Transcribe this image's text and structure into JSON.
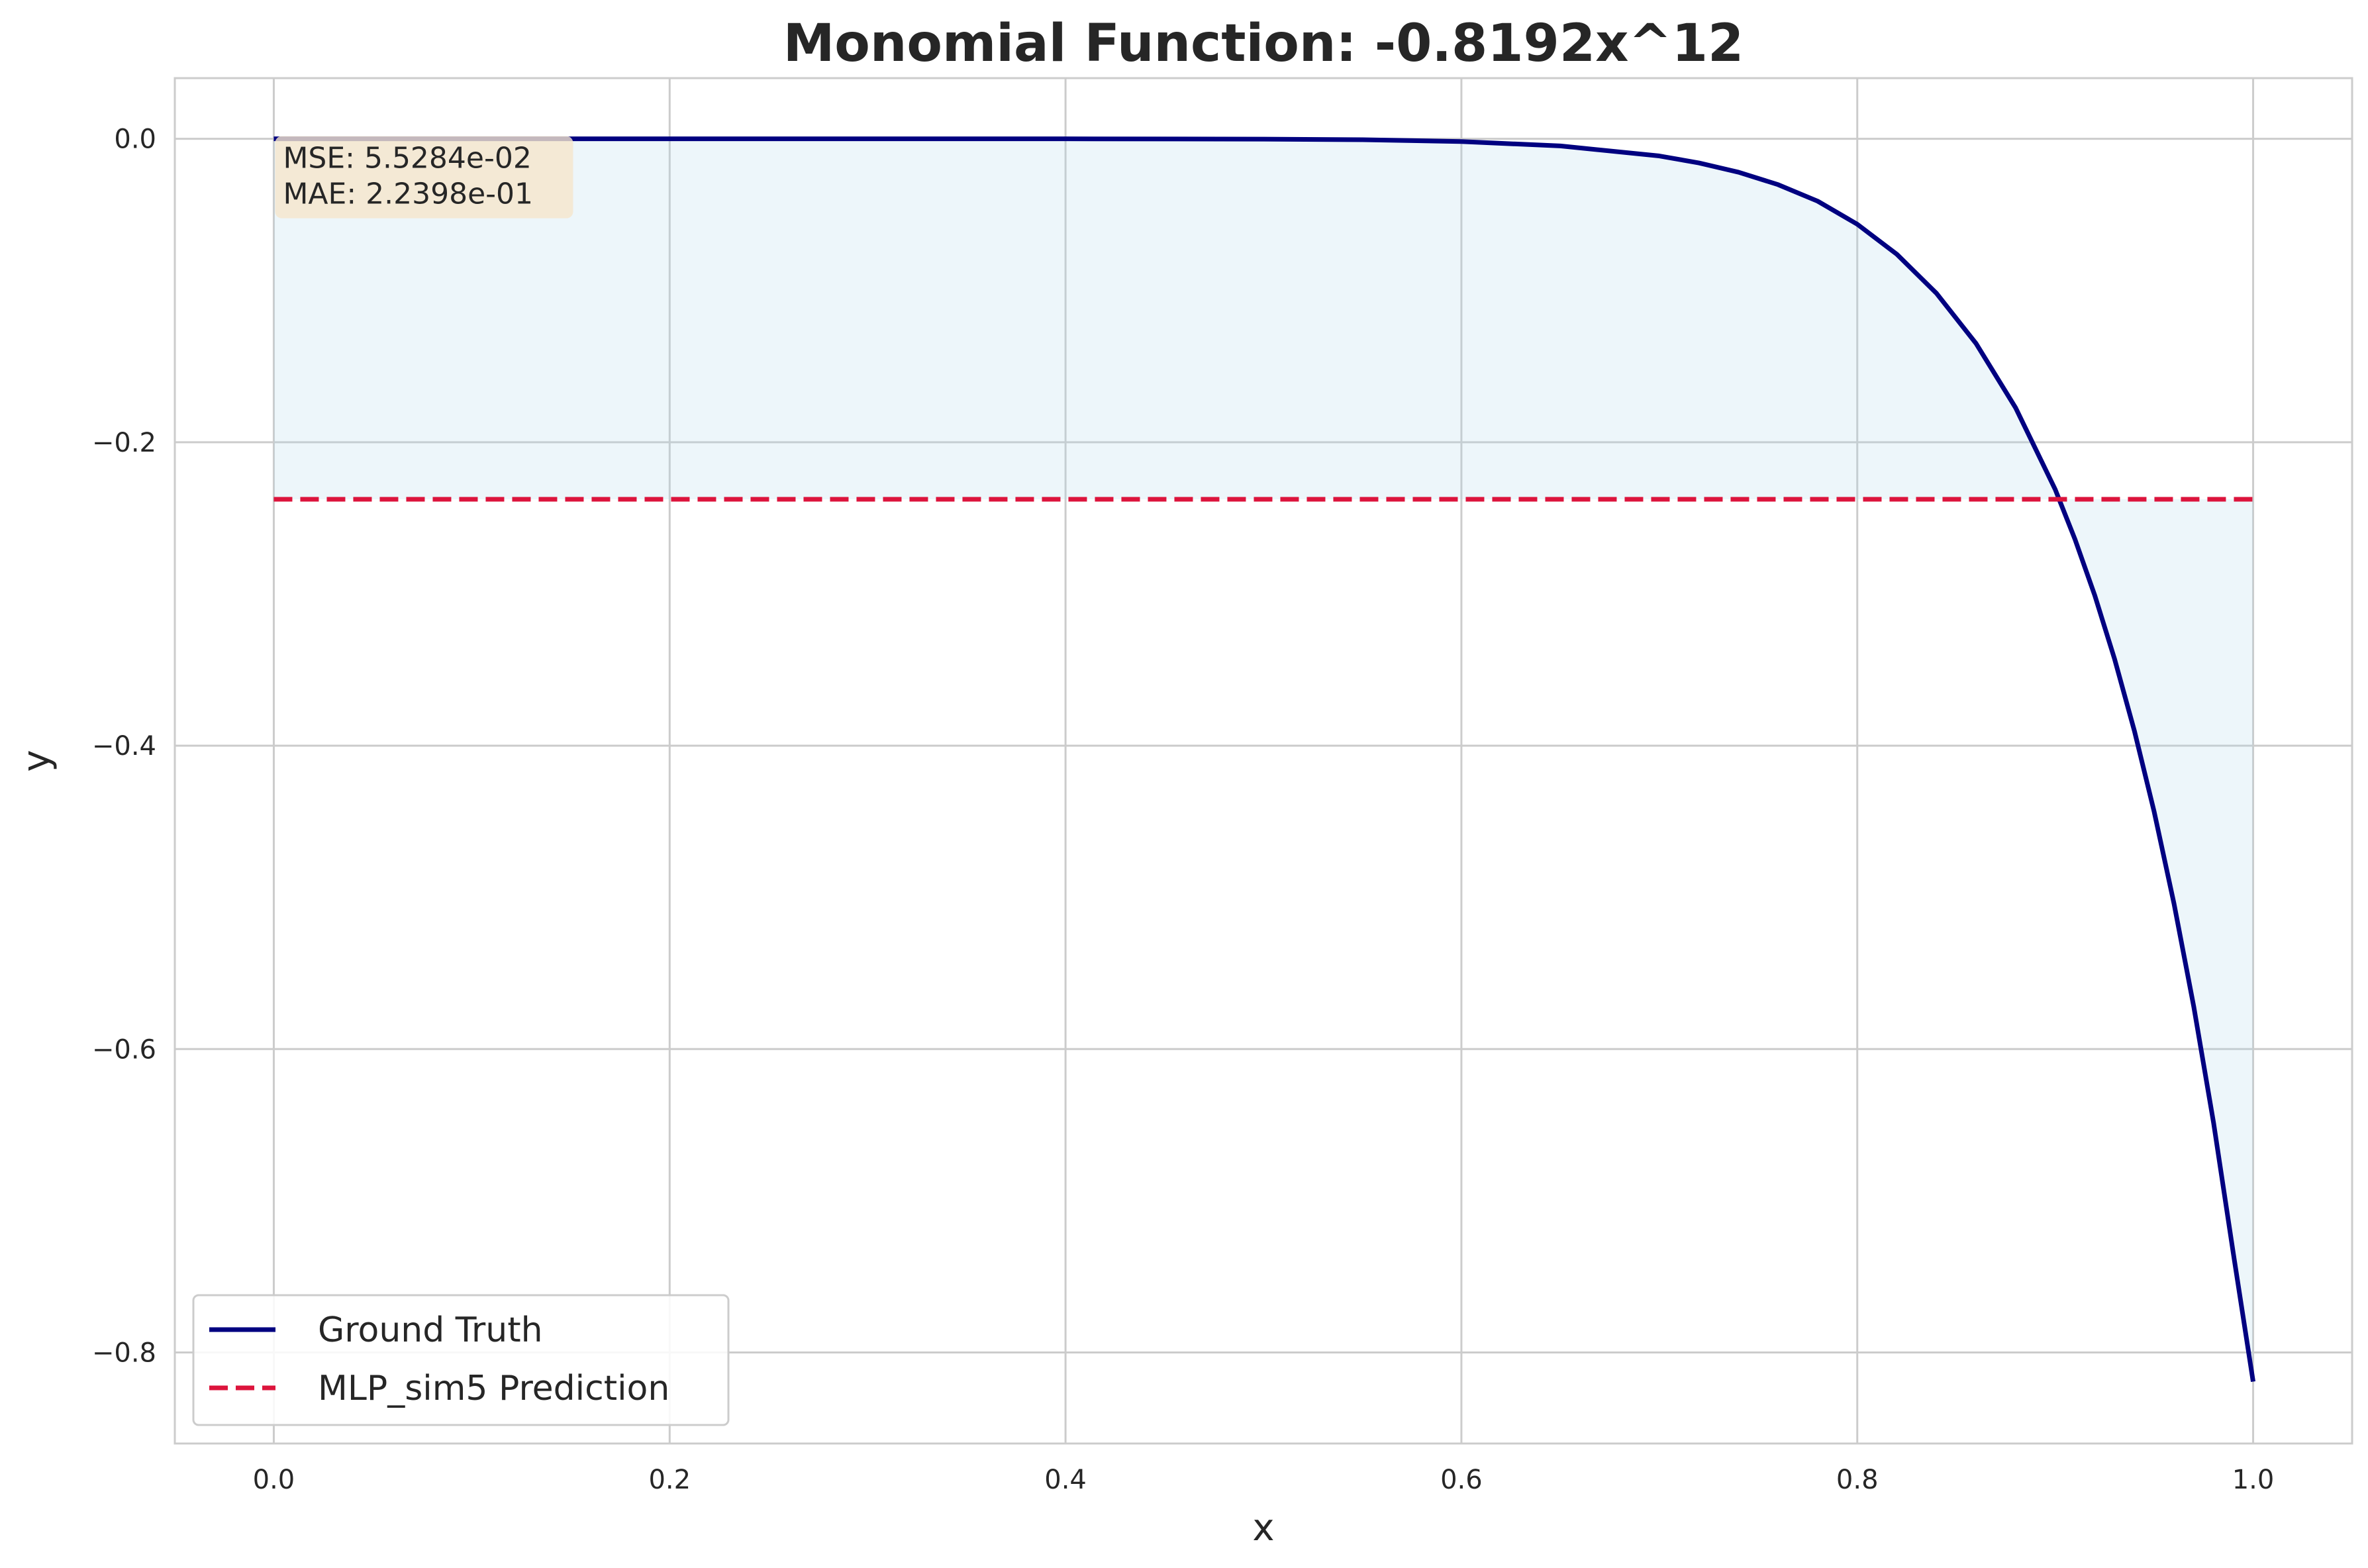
{
  "chart_data": {
    "type": "line",
    "title": "Monomial Function: -0.8192x^12",
    "xlabel": "x",
    "ylabel": "y",
    "xlim": [
      -0.05,
      1.05
    ],
    "ylim": [
      -0.86,
      0.04
    ],
    "x_ticks": [
      0.0,
      0.2,
      0.4,
      0.6,
      0.8,
      1.0
    ],
    "x_tick_labels": [
      "0.0",
      "0.2",
      "0.4",
      "0.6",
      "0.8",
      "1.0"
    ],
    "y_ticks": [
      0.0,
      -0.2,
      -0.4,
      -0.6,
      -0.8
    ],
    "y_tick_labels": [
      "0.0",
      "−0.2",
      "−0.4",
      "−0.6",
      "−0.8"
    ],
    "grid": true,
    "legend_position": "bottom-left",
    "series": [
      {
        "name": "Ground Truth",
        "style": "solid",
        "color": "#000080",
        "x": [
          0.0,
          0.1,
          0.2,
          0.3,
          0.4,
          0.5,
          0.55,
          0.6,
          0.65,
          0.7,
          0.72,
          0.74,
          0.76,
          0.78,
          0.8,
          0.82,
          0.84,
          0.86,
          0.88,
          0.9,
          0.91,
          0.92,
          0.93,
          0.94,
          0.95,
          0.96,
          0.97,
          0.98,
          0.99,
          1.0
        ],
        "y": [
          0.0,
          0.0,
          0.0,
          0.0,
          0.0,
          -0.0002,
          -0.0006,
          -0.0018,
          -0.0047,
          -0.0113,
          -0.0159,
          -0.022,
          -0.0302,
          -0.0411,
          -0.0563,
          -0.0761,
          -0.1018,
          -0.1349,
          -0.1773,
          -0.2311,
          -0.264,
          -0.301,
          -0.3429,
          -0.3902,
          -0.4436,
          -0.504,
          -0.572,
          -0.6485,
          -0.7348,
          -0.8192
        ]
      },
      {
        "name": "MLP_sim5 Prediction",
        "style": "dashed",
        "color": "#dc143c",
        "x": [
          0.0,
          1.0
        ],
        "y": [
          -0.2376,
          -0.2376
        ]
      }
    ],
    "fill_between": {
      "color": "#add8e6",
      "opacity": 0.22
    },
    "annotation": {
      "lines": [
        "MSE: 5.5284e-02",
        "MAE: 2.2398e-01"
      ],
      "background": "#f5e6cc"
    }
  }
}
